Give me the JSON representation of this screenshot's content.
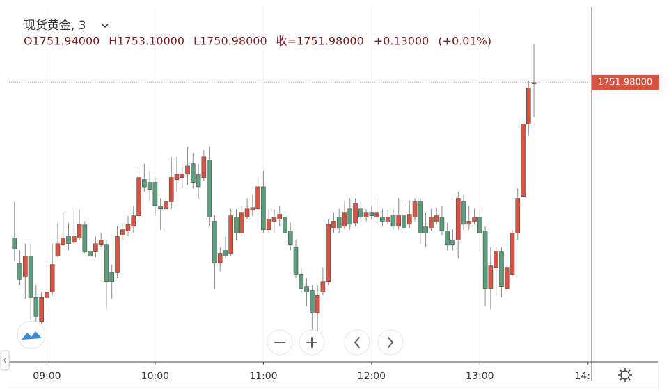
{
  "chart_data": {
    "type": "candlestick",
    "title": "现货黄金, 3",
    "legend": [
      "O1751.94000",
      "H1753.10000",
      "L1750.98000",
      "收=1751.98000",
      "+0.13000",
      "(+0.01%)"
    ],
    "last_price": {
      "value": 1751.98,
      "label": "1751.98000"
    },
    "up_color": "#d75442",
    "down_color": "#5b9e7b",
    "grid": "x",
    "xlim": [
      "08:39",
      "14:02"
    ],
    "ylim": [
      1743.8,
      1754.2
    ],
    "xticks": [
      "09:00",
      "10:00",
      "11:00",
      "12:00",
      "13:00",
      {
        "value": "14:00",
        "label": "14:"
      }
    ],
    "x": [
      "08:42",
      "08:45",
      "08:48",
      "08:51",
      "08:54",
      "08:57",
      "09:00",
      "09:03",
      "09:06",
      "09:09",
      "09:12",
      "09:15",
      "09:18",
      "09:21",
      "09:24",
      "09:27",
      "09:30",
      "09:33",
      "09:36",
      "09:39",
      "09:42",
      "09:45",
      "09:48",
      "09:51",
      "09:54",
      "09:57",
      "10:00",
      "10:03",
      "10:06",
      "10:09",
      "10:12",
      "10:15",
      "10:18",
      "10:21",
      "10:24",
      "10:27",
      "10:30",
      "10:33",
      "10:36",
      "10:39",
      "10:42",
      "10:45",
      "10:48",
      "10:51",
      "10:54",
      "10:57",
      "11:00",
      "11:03",
      "11:06",
      "11:09",
      "11:12",
      "11:15",
      "11:18",
      "11:21",
      "11:24",
      "11:27",
      "11:30",
      "11:33",
      "11:36",
      "11:39",
      "11:42",
      "11:45",
      "11:48",
      "11:51",
      "11:54",
      "11:57",
      "12:00",
      "12:03",
      "12:06",
      "12:09",
      "12:12",
      "12:15",
      "12:18",
      "12:21",
      "12:24",
      "12:27",
      "12:30",
      "12:33",
      "12:36",
      "12:39",
      "12:42",
      "12:45",
      "12:48",
      "12:51",
      "12:54",
      "12:57",
      "13:00",
      "13:03",
      "13:06",
      "13:09",
      "13:12",
      "13:15",
      "13:18",
      "13:21",
      "13:24",
      "13:27",
      "13:30"
    ],
    "open": [
      1747.42,
      1746.68,
      1746.28,
      1746.89,
      1745.67,
      1744.97,
      1745.67,
      1745.83,
      1746.89,
      1747.21,
      1747.46,
      1747.29,
      1747.42,
      1747.8,
      1747.01,
      1747.01,
      1747.21,
      1747.21,
      1746.4,
      1746.4,
      1747.5,
      1747.62,
      1747.76,
      1748.07,
      1749.13,
      1749.05,
      1749.05,
      1748.35,
      1748.27,
      1748.48,
      1749.13,
      1749.19,
      1749.29,
      1749.6,
      1749.29,
      1749.19,
      1749.7,
      1747.91,
      1746.68,
      1747.05,
      1746.95,
      1748.03,
      1747.56,
      1748.03,
      1748.23,
      1748.27,
      1748.92,
      1747.66,
      1747.91,
      1747.97,
      1748.03,
      1747.62,
      1747.15,
      1746.34,
      1745.99,
      1745.87,
      1745.22,
      1745.83,
      1746.13,
      1747.7,
      1748.03,
      1747.76,
      1748.27,
      1747.86,
      1748.27,
      1748.03,
      1748.17,
      1748.03,
      1748.03,
      1747.91,
      1748.07,
      1747.76,
      1748.07,
      1747.82,
      1748.03,
      1748.48,
      1747.76,
      1747.7,
      1747.91,
      1748.03,
      1747.62,
      1747.36,
      1747.36,
      1748.48,
      1747.82,
      1747.91,
      1748.03,
      1747.62,
      1745.93,
      1746.54,
      1747.01,
      1745.93,
      1746.34,
      1747.56,
      1748.64,
      1750.76,
      1751.94
    ],
    "high": [
      1748.48,
      1747.05,
      1747.25,
      1747.25,
      1746.03,
      1745.83,
      1746.64,
      1747.25,
      1747.86,
      1748.17,
      1747.86,
      1748.27,
      1748.27,
      1747.91,
      1747.25,
      1747.46,
      1747.56,
      1747.36,
      1746.64,
      1747.76,
      1747.86,
      1748.07,
      1748.37,
      1749.49,
      1749.6,
      1749.39,
      1749.19,
      1748.58,
      1748.68,
      1749.8,
      1749.8,
      1749.6,
      1750.1,
      1749.9,
      1749.6,
      1750.0,
      1750.1,
      1748.07,
      1747.15,
      1747.46,
      1748.27,
      1748.27,
      1748.37,
      1748.58,
      1748.68,
      1749.19,
      1749.39,
      1748.27,
      1748.27,
      1748.37,
      1748.17,
      1747.86,
      1747.36,
      1746.54,
      1746.24,
      1746.03,
      1746.03,
      1746.54,
      1747.97,
      1748.17,
      1748.27,
      1748.48,
      1748.58,
      1748.58,
      1748.48,
      1748.27,
      1748.37,
      1748.58,
      1748.27,
      1748.23,
      1748.27,
      1748.58,
      1748.48,
      1748.52,
      1748.58,
      1748.58,
      1748.17,
      1748.27,
      1748.31,
      1748.37,
      1747.86,
      1747.66,
      1748.78,
      1748.68,
      1748.37,
      1748.27,
      1748.27,
      1747.76,
      1747.15,
      1747.15,
      1747.15,
      1746.64,
      1747.66,
      1748.88,
      1750.92,
      1752.04,
      1753.1
    ],
    "low": [
      1746.74,
      1746.03,
      1745.63,
      1745.01,
      1744.97,
      1744.91,
      1745.42,
      1745.73,
      1746.85,
      1747.15,
      1747.05,
      1747.25,
      1747.36,
      1746.95,
      1746.81,
      1746.85,
      1747.15,
      1745.32,
      1745.63,
      1746.24,
      1747.36,
      1747.46,
      1747.56,
      1747.97,
      1748.78,
      1748.48,
      1748.07,
      1747.66,
      1747.66,
      1748.27,
      1748.78,
      1748.88,
      1748.98,
      1748.88,
      1748.58,
      1749.09,
      1747.76,
      1745.93,
      1746.44,
      1746.85,
      1746.89,
      1747.36,
      1747.46,
      1747.97,
      1748.07,
      1748.17,
      1747.56,
      1747.56,
      1747.56,
      1747.76,
      1747.36,
      1747.05,
      1746.24,
      1745.83,
      1745.42,
      1744.71,
      1744.65,
      1745.73,
      1746.03,
      1747.56,
      1747.56,
      1747.66,
      1747.66,
      1747.76,
      1747.86,
      1747.91,
      1747.97,
      1747.86,
      1747.76,
      1747.82,
      1747.66,
      1747.66,
      1747.56,
      1747.7,
      1747.91,
      1747.25,
      1747.15,
      1747.62,
      1747.82,
      1747.5,
      1747.05,
      1747.05,
      1746.81,
      1747.66,
      1747.66,
      1747.82,
      1747.05,
      1745.42,
      1745.32,
      1745.73,
      1745.67,
      1745.83,
      1746.28,
      1747.36,
      1748.48,
      1750.41,
      1750.98
    ],
    "close": [
      1747.09,
      1746.2,
      1746.89,
      1745.67,
      1745.12,
      1745.67,
      1745.83,
      1746.64,
      1747.25,
      1747.42,
      1747.25,
      1747.46,
      1747.82,
      1747.01,
      1746.89,
      1747.25,
      1747.36,
      1746.13,
      1746.13,
      1747.46,
      1747.66,
      1747.82,
      1748.07,
      1749.19,
      1748.92,
      1748.84,
      1748.37,
      1748.27,
      1748.48,
      1749.19,
      1749.29,
      1749.29,
      1749.53,
      1749.05,
      1748.92,
      1749.8,
      1748.03,
      1746.68,
      1746.95,
      1746.89,
      1748.07,
      1747.56,
      1748.17,
      1748.27,
      1748.31,
      1748.92,
      1747.66,
      1747.97,
      1748.03,
      1748.11,
      1747.56,
      1747.21,
      1746.34,
      1745.93,
      1745.83,
      1745.22,
      1745.73,
      1746.13,
      1747.82,
      1747.91,
      1747.7,
      1748.17,
      1747.82,
      1748.43,
      1748.03,
      1748.17,
      1748.07,
      1748.17,
      1747.91,
      1748.03,
      1747.76,
      1748.07,
      1747.7,
      1748.11,
      1748.48,
      1747.56,
      1747.56,
      1748.03,
      1748.07,
      1747.62,
      1747.21,
      1747.21,
      1748.58,
      1747.82,
      1747.91,
      1748.03,
      1747.56,
      1745.93,
      1746.6,
      1747.01,
      1745.99,
      1746.54,
      1747.56,
      1748.58,
      1750.76,
      1751.83,
      1751.98
    ]
  }
}
